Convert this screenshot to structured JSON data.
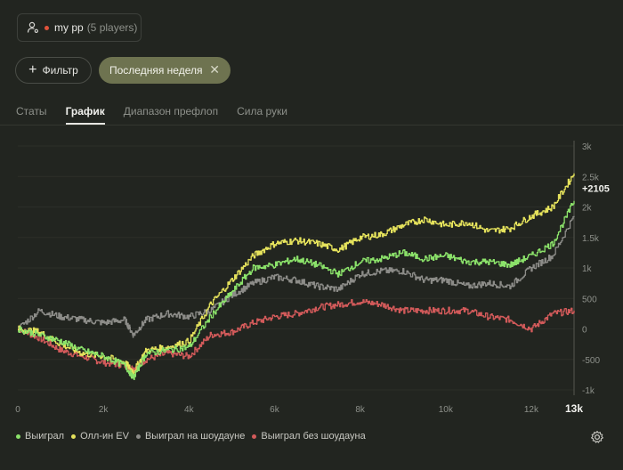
{
  "player": {
    "name": "my pp",
    "count": "(5 players)"
  },
  "filter_label": "Фильтр",
  "chip": {
    "label": "Последняя неделя",
    "close": "✕"
  },
  "tabs": [
    {
      "label": "Статы"
    },
    {
      "label": "График"
    },
    {
      "label": "Диапазон префлоп"
    },
    {
      "label": "Сила руки"
    }
  ],
  "active_tab": "График",
  "final_value_label": "+2105",
  "chart_data": {
    "type": "line",
    "ylim": [
      -1000,
      3000
    ],
    "xlim": [
      0,
      13000
    ],
    "y_ticks": [
      "3k",
      "2.5k",
      "2k",
      "1.5k",
      "1k",
      "500",
      "0",
      "-500",
      "-1k"
    ],
    "y_tick_values": [
      3000,
      2500,
      2000,
      1500,
      1000,
      500,
      0,
      -500,
      -1000
    ],
    "x_ticks": [
      "0",
      "2k",
      "4k",
      "6k",
      "8k",
      "10k",
      "12k",
      "13k"
    ],
    "x_tick_values": [
      0,
      2000,
      4000,
      6000,
      8000,
      10000,
      12000,
      13000
    ],
    "series": [
      {
        "name": "Выиграл",
        "color": "#8be26a",
        "x": [
          0,
          500,
          1000,
          1500,
          2000,
          2500,
          2700,
          3000,
          3500,
          4000,
          4500,
          5000,
          5500,
          6000,
          6500,
          7000,
          7500,
          8000,
          8500,
          9000,
          9500,
          10000,
          10500,
          11000,
          11500,
          12000,
          12500,
          13000
        ],
        "y": [
          0,
          -100,
          -200,
          -350,
          -450,
          -600,
          -800,
          -400,
          -350,
          -300,
          200,
          600,
          1000,
          1050,
          1150,
          1050,
          900,
          1100,
          1150,
          1250,
          1150,
          1200,
          1100,
          1100,
          1050,
          1200,
          1400,
          2100
        ]
      },
      {
        "name": "Олл-ин EV",
        "color": "#e5e25c",
        "x": [
          0,
          500,
          1000,
          1500,
          2000,
          2500,
          2700,
          3000,
          3500,
          4000,
          4500,
          5000,
          5500,
          6000,
          6500,
          7000,
          7500,
          8000,
          8500,
          9000,
          9500,
          10000,
          10500,
          11000,
          11500,
          12000,
          12500,
          13000
        ],
        "y": [
          0,
          -50,
          -250,
          -400,
          -450,
          -550,
          -700,
          -350,
          -300,
          -200,
          400,
          800,
          1200,
          1400,
          1450,
          1400,
          1300,
          1500,
          1550,
          1700,
          1800,
          1700,
          1750,
          1600,
          1650,
          1850,
          2000,
          2550
        ]
      },
      {
        "name": "Выиграл на шоудауне",
        "color": "#8c8c88",
        "x": [
          0,
          500,
          1000,
          1500,
          2000,
          2500,
          2700,
          3000,
          3500,
          4000,
          4500,
          5000,
          5500,
          6000,
          6500,
          7000,
          7500,
          8000,
          8500,
          9000,
          9500,
          10000,
          10500,
          11000,
          11500,
          12000,
          12500,
          13000
        ],
        "y": [
          0,
          300,
          200,
          150,
          100,
          150,
          -100,
          150,
          250,
          200,
          300,
          550,
          750,
          850,
          800,
          700,
          650,
          900,
          950,
          950,
          800,
          800,
          700,
          750,
          700,
          1000,
          1200,
          1850
        ]
      },
      {
        "name": "Выиграл без шоудауна",
        "color": "#d25a5a",
        "x": [
          0,
          500,
          1000,
          1500,
          2000,
          2500,
          2700,
          3000,
          3500,
          4000,
          4500,
          5000,
          5500,
          6000,
          6500,
          7000,
          7500,
          8000,
          8500,
          9000,
          9500,
          10000,
          10500,
          11000,
          11500,
          12000,
          12500,
          13000
        ],
        "y": [
          0,
          -150,
          -350,
          -450,
          -550,
          -600,
          -650,
          -500,
          -400,
          -450,
          -100,
          -50,
          100,
          200,
          250,
          350,
          400,
          450,
          400,
          300,
          300,
          300,
          300,
          200,
          150,
          0,
          250,
          300
        ]
      }
    ]
  },
  "icons": {
    "player": "user-cog-icon",
    "settings": "gear-icon",
    "add": "plus-icon",
    "close": "close-icon"
  }
}
